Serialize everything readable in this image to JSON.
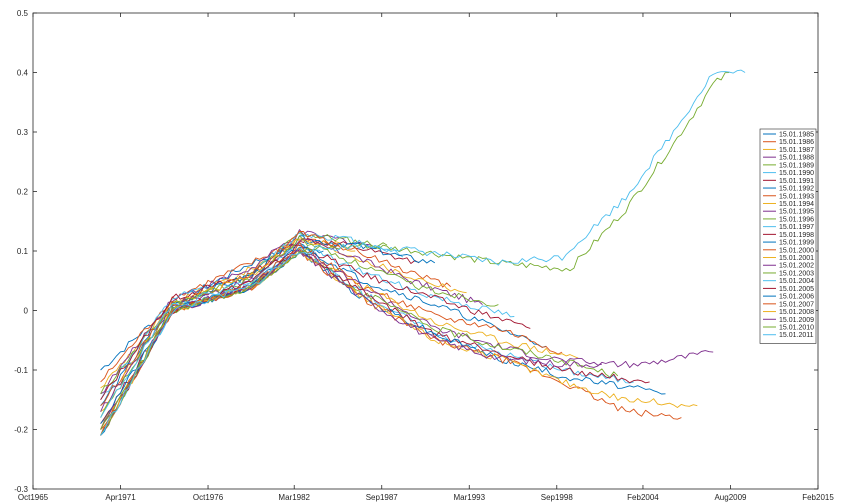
{
  "chart_data": {
    "type": "line",
    "title": "",
    "xlabel": "",
    "ylabel": "",
    "x_axis_type": "date",
    "xlim": [
      "1965-10-01",
      "2015-02-01"
    ],
    "ylim": [
      -0.3,
      0.5
    ],
    "grid": false,
    "legend_position": "right",
    "x_ticks": [
      {
        "date": "1965-10-01",
        "label": "Oct1965"
      },
      {
        "date": "1971-04-01",
        "label": "Apr1971"
      },
      {
        "date": "1976-10-01",
        "label": "Oct1976"
      },
      {
        "date": "1982-03-01",
        "label": "Mar1982"
      },
      {
        "date": "1987-09-01",
        "label": "Sep1987"
      },
      {
        "date": "1993-03-01",
        "label": "Mar1993"
      },
      {
        "date": "1998-09-01",
        "label": "Sep1998"
      },
      {
        "date": "2004-02-01",
        "label": "Feb2004"
      },
      {
        "date": "2009-08-01",
        "label": "Aug2009"
      },
      {
        "date": "2015-02-01",
        "label": "Feb2015"
      }
    ],
    "y_ticks": [
      {
        "value": -0.3,
        "label": "-0.3"
      },
      {
        "value": -0.2,
        "label": "-0.2"
      },
      {
        "value": -0.1,
        "label": "-0.1"
      },
      {
        "value": 0,
        "label": "0"
      },
      {
        "value": 0.1,
        "label": "0.1"
      },
      {
        "value": 0.2,
        "label": "0.2"
      },
      {
        "value": 0.3,
        "label": "0.3"
      },
      {
        "value": 0.4,
        "label": "0.4"
      },
      {
        "value": 0.5,
        "label": "0.5"
      }
    ],
    "series": [
      {
        "name": "15.01.1985",
        "color": "#0072BD",
        "start": [
          1970.0,
          -0.1
        ],
        "points": [
          [
            1974.5,
            0.01
          ],
          [
            1979.5,
            0.08
          ],
          [
            1982.5,
            0.11
          ],
          [
            1984.0,
            0.1
          ]
        ]
      },
      {
        "name": "15.01.1986",
        "color": "#D95319",
        "start": [
          1970.0,
          -0.12
        ],
        "points": [
          [
            1974.5,
            0.02
          ],
          [
            1979.5,
            0.08
          ],
          [
            1982.5,
            0.12
          ],
          [
            1984.5,
            0.11
          ],
          [
            1985.0,
            0.11
          ]
        ]
      },
      {
        "name": "15.01.1987",
        "color": "#EDB120",
        "start": [
          1970.0,
          -0.13
        ],
        "points": [
          [
            1974.5,
            0.01
          ],
          [
            1979.5,
            0.07
          ],
          [
            1982.5,
            0.12
          ],
          [
            1985.0,
            0.11
          ],
          [
            1986.0,
            0.1
          ]
        ]
      },
      {
        "name": "15.01.1988",
        "color": "#7E2F8E",
        "start": [
          1970.0,
          -0.14
        ],
        "points": [
          [
            1974.5,
            0.02
          ],
          [
            1979.5,
            0.07
          ],
          [
            1982.5,
            0.13
          ],
          [
            1985.0,
            0.12
          ],
          [
            1987.0,
            0.11
          ]
        ]
      },
      {
        "name": "15.01.1989",
        "color": "#77AC30",
        "start": [
          1970.0,
          -0.14
        ],
        "points": [
          [
            1974.5,
            0.01
          ],
          [
            1979.5,
            0.06
          ],
          [
            1982.5,
            0.13
          ],
          [
            1985.0,
            0.12
          ],
          [
            1987.5,
            0.11
          ],
          [
            1988.0,
            0.11
          ]
        ]
      },
      {
        "name": "15.01.1990",
        "color": "#4DBEEE",
        "start": [
          1970.0,
          -0.15
        ],
        "points": [
          [
            1974.5,
            0.02
          ],
          [
            1979.5,
            0.06
          ],
          [
            1982.5,
            0.13
          ],
          [
            1985.5,
            0.12
          ],
          [
            1988.5,
            0.1
          ],
          [
            1989.0,
            0.09
          ]
        ]
      },
      {
        "name": "15.01.1991",
        "color": "#A2142F",
        "start": [
          1970.0,
          -0.15
        ],
        "points": [
          [
            1974.5,
            0.02
          ],
          [
            1979.5,
            0.06
          ],
          [
            1982.5,
            0.12
          ],
          [
            1985.5,
            0.11
          ],
          [
            1988.5,
            0.09
          ],
          [
            1990.0,
            0.08
          ]
        ]
      },
      {
        "name": "15.01.1992",
        "color": "#0072BD",
        "start": [
          1970.0,
          -0.16
        ],
        "points": [
          [
            1974.5,
            0.01
          ],
          [
            1979.5,
            0.06
          ],
          [
            1982.5,
            0.12
          ],
          [
            1986.0,
            0.11
          ],
          [
            1989.0,
            0.09
          ],
          [
            1991.0,
            0.08
          ]
        ]
      },
      {
        "name": "15.01.1993",
        "color": "#D95319",
        "start": [
          1970.0,
          -0.16
        ],
        "points": [
          [
            1974.5,
            0.01
          ],
          [
            1979.5,
            0.06
          ],
          [
            1982.5,
            0.13
          ],
          [
            1986.0,
            0.1
          ],
          [
            1989.0,
            0.07
          ],
          [
            1992.0,
            0.04
          ]
        ]
      },
      {
        "name": "15.01.1994",
        "color": "#EDB120",
        "start": [
          1970.0,
          -0.17
        ],
        "points": [
          [
            1974.5,
            0.01
          ],
          [
            1979.5,
            0.06
          ],
          [
            1982.5,
            0.12
          ],
          [
            1986.0,
            0.09
          ],
          [
            1989.0,
            0.06
          ],
          [
            1993.0,
            0.03
          ]
        ]
      },
      {
        "name": "15.01.1995",
        "color": "#7E2F8E",
        "start": [
          1970.0,
          -0.17
        ],
        "points": [
          [
            1974.5,
            0.01
          ],
          [
            1979.5,
            0.05
          ],
          [
            1982.5,
            0.12
          ],
          [
            1986.0,
            0.09
          ],
          [
            1989.5,
            0.05
          ],
          [
            1994.0,
            0.01
          ]
        ]
      },
      {
        "name": "15.01.1996",
        "color": "#77AC30",
        "start": [
          1970.0,
          -0.18
        ],
        "points": [
          [
            1974.5,
            0.01
          ],
          [
            1979.5,
            0.05
          ],
          [
            1982.5,
            0.12
          ],
          [
            1986.0,
            0.08
          ],
          [
            1990.0,
            0.04
          ],
          [
            1995.0,
            0.01
          ]
        ]
      },
      {
        "name": "15.01.1997",
        "color": "#4DBEEE",
        "start": [
          1970.0,
          -0.18
        ],
        "points": [
          [
            1974.5,
            0.01
          ],
          [
            1979.5,
            0.05
          ],
          [
            1982.5,
            0.11
          ],
          [
            1986.0,
            0.07
          ],
          [
            1990.0,
            0.03
          ],
          [
            1996.0,
            -0.01
          ]
        ]
      },
      {
        "name": "15.01.1998",
        "color": "#A2142F",
        "start": [
          1970.0,
          -0.19
        ],
        "points": [
          [
            1974.5,
            0.0
          ],
          [
            1979.5,
            0.05
          ],
          [
            1982.5,
            0.11
          ],
          [
            1986.5,
            0.06
          ],
          [
            1991.0,
            0.02
          ],
          [
            1997.0,
            -0.03
          ]
        ]
      },
      {
        "name": "15.01.1999",
        "color": "#0072BD",
        "start": [
          1970.0,
          -0.19
        ],
        "points": [
          [
            1974.5,
            0.0
          ],
          [
            1979.5,
            0.04
          ],
          [
            1982.5,
            0.11
          ],
          [
            1986.5,
            0.05
          ],
          [
            1991.0,
            0.01
          ],
          [
            1994.0,
            -0.02
          ],
          [
            1998.0,
            -0.06
          ]
        ]
      },
      {
        "name": "15.01.2000",
        "color": "#D95319",
        "start": [
          1970.0,
          -0.2
        ],
        "points": [
          [
            1974.5,
            0.0
          ],
          [
            1979.5,
            0.04
          ],
          [
            1982.5,
            0.11
          ],
          [
            1986.5,
            0.04
          ],
          [
            1991.0,
            -0.01
          ],
          [
            1995.0,
            -0.03
          ],
          [
            1999.0,
            -0.07
          ]
        ]
      },
      {
        "name": "15.01.2001",
        "color": "#EDB120",
        "start": [
          1970.0,
          -0.2
        ],
        "points": [
          [
            1974.5,
            0.0
          ],
          [
            1979.5,
            0.04
          ],
          [
            1982.5,
            0.1
          ],
          [
            1986.5,
            0.04
          ],
          [
            1991.0,
            -0.02
          ],
          [
            1995.0,
            -0.05
          ],
          [
            2000.0,
            -0.08
          ]
        ]
      },
      {
        "name": "15.01.2002",
        "color": "#7E2F8E",
        "start": [
          1970.0,
          -0.2
        ],
        "points": [
          [
            1974.5,
            0.0
          ],
          [
            1979.5,
            0.04
          ],
          [
            1982.5,
            0.1
          ],
          [
            1986.5,
            0.04
          ],
          [
            1991.0,
            -0.03
          ],
          [
            1995.0,
            -0.06
          ],
          [
            1998.0,
            -0.08
          ],
          [
            2001.5,
            -0.09
          ]
        ]
      },
      {
        "name": "15.01.2003",
        "color": "#77AC30",
        "start": [
          1970.0,
          -0.2
        ],
        "points": [
          [
            1974.5,
            0.0
          ],
          [
            1979.5,
            0.04
          ],
          [
            1982.5,
            0.1
          ],
          [
            1986.5,
            0.03
          ],
          [
            1991.0,
            -0.03
          ],
          [
            1995.0,
            -0.06
          ],
          [
            1998.5,
            -0.08
          ],
          [
            2002.5,
            -0.11
          ]
        ]
      },
      {
        "name": "15.01.2004",
        "color": "#4DBEEE",
        "start": [
          1970.0,
          -0.21
        ],
        "points": [
          [
            1974.5,
            0.0
          ],
          [
            1979.5,
            0.04
          ],
          [
            1982.5,
            0.1
          ],
          [
            1986.5,
            0.03
          ],
          [
            1991.0,
            -0.04
          ],
          [
            1995.0,
            -0.07
          ],
          [
            1999.0,
            -0.1
          ],
          [
            2003.5,
            -0.12
          ]
        ]
      },
      {
        "name": "15.01.2005",
        "color": "#A2142F",
        "start": [
          1970.0,
          -0.21
        ],
        "points": [
          [
            1974.5,
            0.0
          ],
          [
            1979.5,
            0.04
          ],
          [
            1982.5,
            0.1
          ],
          [
            1986.5,
            0.03
          ],
          [
            1991.0,
            -0.04
          ],
          [
            1995.0,
            -0.07
          ],
          [
            1999.0,
            -0.1
          ],
          [
            2004.5,
            -0.12
          ]
        ]
      },
      {
        "name": "15.01.2006",
        "color": "#0072BD",
        "start": [
          1970.0,
          -0.21
        ],
        "points": [
          [
            1974.5,
            0.0
          ],
          [
            1979.5,
            0.04
          ],
          [
            1982.5,
            0.1
          ],
          [
            1986.5,
            0.02
          ],
          [
            1991.0,
            -0.04
          ],
          [
            1995.0,
            -0.08
          ],
          [
            1999.0,
            -0.11
          ],
          [
            2005.5,
            -0.14
          ]
        ]
      },
      {
        "name": "15.01.2007",
        "color": "#D95319",
        "start": [
          1970.0,
          -0.21
        ],
        "points": [
          [
            1974.5,
            0.0
          ],
          [
            1979.5,
            0.04
          ],
          [
            1982.5,
            0.1
          ],
          [
            1986.5,
            0.02
          ],
          [
            1991.0,
            -0.05
          ],
          [
            1995.0,
            -0.08
          ],
          [
            1999.0,
            -0.12
          ],
          [
            2003.0,
            -0.17
          ],
          [
            2006.5,
            -0.18
          ]
        ]
      },
      {
        "name": "15.01.2008",
        "color": "#EDB120",
        "start": [
          1970.0,
          -0.21
        ],
        "points": [
          [
            1974.5,
            0.0
          ],
          [
            1979.5,
            0.04
          ],
          [
            1982.5,
            0.1
          ],
          [
            1986.5,
            0.02
          ],
          [
            1991.0,
            -0.05
          ],
          [
            1995.0,
            -0.08
          ],
          [
            1999.0,
            -0.12
          ],
          [
            2003.0,
            -0.15
          ],
          [
            2007.5,
            -0.16
          ]
        ]
      },
      {
        "name": "15.01.2009",
        "color": "#7E2F8E",
        "start": [
          1970.0,
          -0.21
        ],
        "points": [
          [
            1974.5,
            0.0
          ],
          [
            1979.5,
            0.04
          ],
          [
            1982.5,
            0.1
          ],
          [
            1986.5,
            0.02
          ],
          [
            1991.0,
            -0.05
          ],
          [
            1995.0,
            -0.08
          ],
          [
            1999.0,
            -0.09
          ],
          [
            2004.0,
            -0.09
          ],
          [
            2008.5,
            -0.07
          ]
        ]
      },
      {
        "name": "15.01.2010",
        "color": "#77AC30",
        "start": [
          1970.0,
          -0.21
        ],
        "points": [
          [
            1974.5,
            0.0
          ],
          [
            1979.5,
            0.04
          ],
          [
            1982.5,
            0.1
          ],
          [
            1986.5,
            0.11
          ],
          [
            1990.0,
            0.1
          ],
          [
            1995.0,
            0.08
          ],
          [
            1999.5,
            0.07
          ],
          [
            2003.0,
            0.17
          ],
          [
            2006.0,
            0.28
          ],
          [
            2008.5,
            0.38
          ],
          [
            2009.5,
            0.4
          ]
        ]
      },
      {
        "name": "15.01.2011",
        "color": "#4DBEEE",
        "start": [
          1970.0,
          -0.21
        ],
        "points": [
          [
            1974.5,
            0.0
          ],
          [
            1979.5,
            0.04
          ],
          [
            1982.5,
            0.1
          ],
          [
            1986.5,
            0.11
          ],
          [
            1990.0,
            0.1
          ],
          [
            1995.0,
            0.08
          ],
          [
            1999.0,
            0.09
          ],
          [
            2003.0,
            0.19
          ],
          [
            2006.0,
            0.3
          ],
          [
            2008.5,
            0.4
          ],
          [
            2010.5,
            0.4
          ]
        ]
      }
    ]
  }
}
